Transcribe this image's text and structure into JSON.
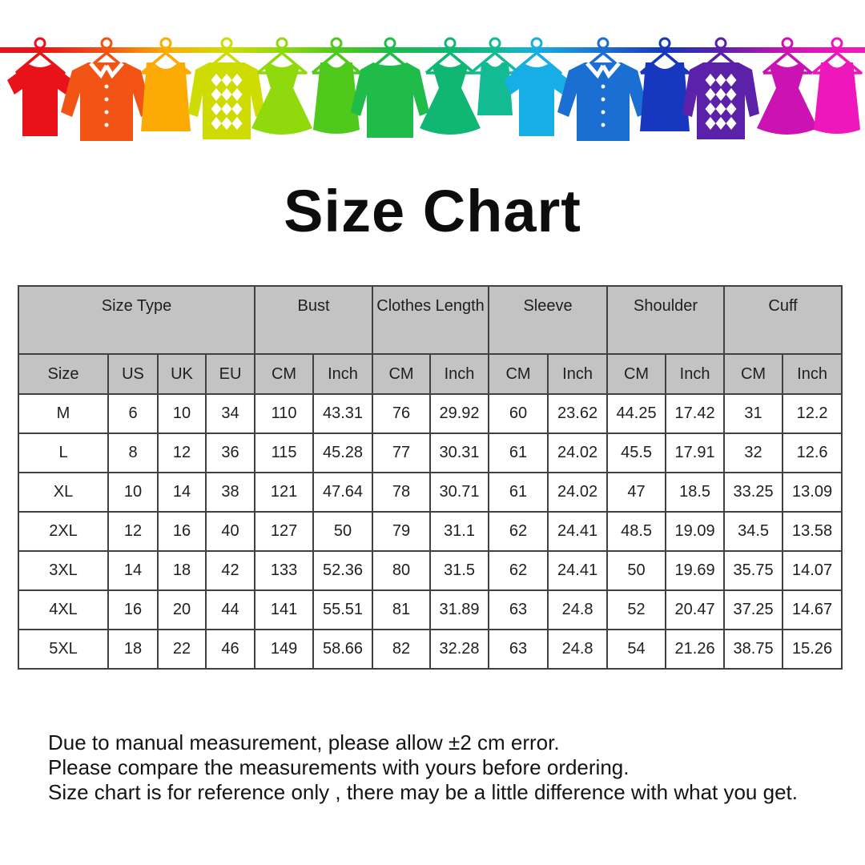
{
  "title": "Size Chart",
  "banner": {
    "items": [
      {
        "name": "red-tshirt",
        "shape": "tshirt",
        "color": "#e91219"
      },
      {
        "name": "orange-shirt",
        "shape": "shirt",
        "color": "#f25415"
      },
      {
        "name": "amber-tank-top",
        "shape": "tank",
        "color": "#fcab04"
      },
      {
        "name": "yellow-argyle-sweater",
        "shape": "argyle",
        "color": "#cfdc04"
      },
      {
        "name": "yellowgreen-dress",
        "shape": "dress",
        "color": "#8fd90d"
      },
      {
        "name": "green-camisole",
        "shape": "camisole",
        "color": "#4fc91b"
      },
      {
        "name": "green-sweater",
        "shape": "sweater",
        "color": "#1fbc49"
      },
      {
        "name": "teal-dress",
        "shape": "dress",
        "color": "#0fb773"
      },
      {
        "name": "teal-small-tank",
        "shape": "tanksmall",
        "color": "#12bb92"
      },
      {
        "name": "cyan-tshirt",
        "shape": "tshirt",
        "color": "#17ade5"
      },
      {
        "name": "blue-shirt",
        "shape": "shirt",
        "color": "#1b6fd3"
      },
      {
        "name": "navy-tank-top",
        "shape": "tank",
        "color": "#1737bf"
      },
      {
        "name": "purple-argyle-sweater",
        "shape": "argyle",
        "color": "#5b21a8"
      },
      {
        "name": "magenta-dress",
        "shape": "dress",
        "color": "#cb13b4"
      },
      {
        "name": "pink-camisole",
        "shape": "camisole",
        "color": "#ee17bb"
      }
    ]
  },
  "table": {
    "groups": [
      {
        "label": "Size Type",
        "span": 4
      },
      {
        "label": "Bust",
        "span": 2
      },
      {
        "label": "Clothes Length",
        "span": 2
      },
      {
        "label": "Sleeve",
        "span": 2
      },
      {
        "label": "Shoulder",
        "span": 2
      },
      {
        "label": "Cuff",
        "span": 2
      }
    ],
    "subheaders": [
      "Size",
      "US",
      "UK",
      "EU",
      "CM",
      "Inch",
      "CM",
      "Inch",
      "CM",
      "Inch",
      "CM",
      "Inch",
      "CM",
      "Inch"
    ],
    "rows": [
      [
        "M",
        "6",
        "10",
        "34",
        "110",
        "43.31",
        "76",
        "29.92",
        "60",
        "23.62",
        "44.25",
        "17.42",
        "31",
        "12.2"
      ],
      [
        "L",
        "8",
        "12",
        "36",
        "115",
        "45.28",
        "77",
        "30.31",
        "61",
        "24.02",
        "45.5",
        "17.91",
        "32",
        "12.6"
      ],
      [
        "XL",
        "10",
        "14",
        "38",
        "121",
        "47.64",
        "78",
        "30.71",
        "61",
        "24.02",
        "47",
        "18.5",
        "33.25",
        "13.09"
      ],
      [
        "2XL",
        "12",
        "16",
        "40",
        "127",
        "50",
        "79",
        "31.1",
        "62",
        "24.41",
        "48.5",
        "19.09",
        "34.5",
        "13.58"
      ],
      [
        "3XL",
        "14",
        "18",
        "42",
        "133",
        "52.36",
        "80",
        "31.5",
        "62",
        "24.41",
        "50",
        "19.69",
        "35.75",
        "14.07"
      ],
      [
        "4XL",
        "16",
        "20",
        "44",
        "141",
        "55.51",
        "81",
        "31.89",
        "63",
        "24.8",
        "52",
        "20.47",
        "37.25",
        "14.67"
      ],
      [
        "5XL",
        "18",
        "22",
        "46",
        "149",
        "58.66",
        "82",
        "32.28",
        "63",
        "24.8",
        "54",
        "21.26",
        "38.75",
        "15.26"
      ]
    ]
  },
  "notes": [
    "Due to manual measurement, please allow ±2 cm error.",
    "Please compare the measurements with yours before ordering.",
    "Size chart is for reference only , there may be a little difference with what you get."
  ],
  "colors": {
    "header_bg": "#c3c3c3",
    "table_border": "#414141",
    "title_text": "#0d0d0d",
    "note_text": "#141414"
  }
}
